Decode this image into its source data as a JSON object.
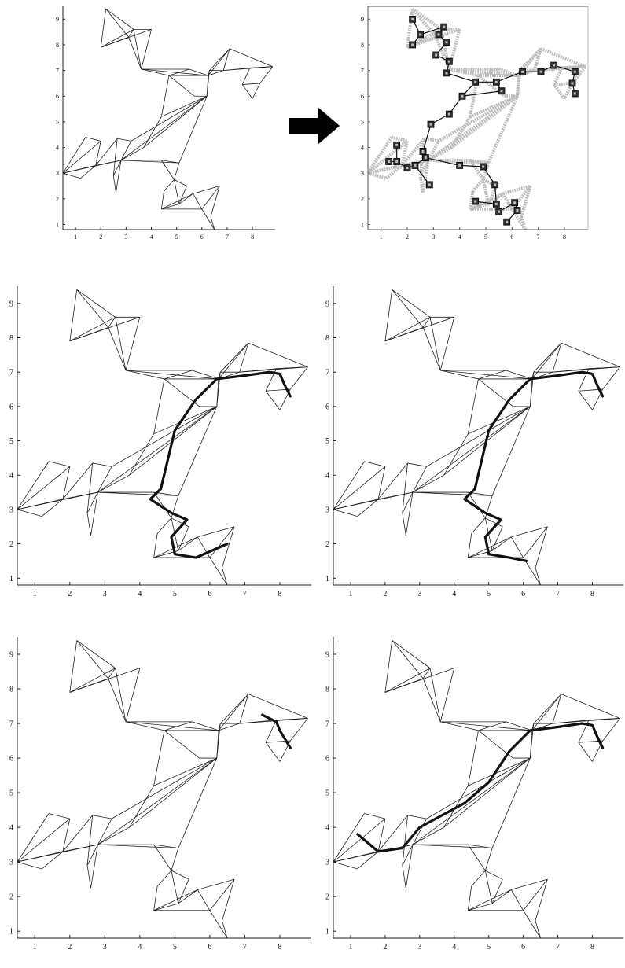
{
  "figure": {
    "panels": [
      {
        "id": "panel-top-left",
        "kind": "mesh",
        "path": null
      },
      {
        "id": "panel-top-right",
        "kind": "graph",
        "path": null
      },
      {
        "id": "panel-mid-left",
        "kind": "mesh_path",
        "path": [
          [
            8.3,
            6.3
          ],
          [
            8.15,
            6.6
          ],
          [
            8.0,
            6.95
          ],
          [
            7.7,
            7.0
          ],
          [
            7.0,
            6.9
          ],
          [
            6.2,
            6.8
          ],
          [
            5.6,
            6.2
          ],
          [
            5.0,
            5.3
          ],
          [
            4.6,
            3.6
          ],
          [
            4.3,
            3.3
          ],
          [
            4.9,
            2.9
          ],
          [
            5.35,
            2.7
          ],
          [
            4.9,
            2.2
          ],
          [
            5.0,
            1.7
          ],
          [
            5.6,
            1.6
          ],
          [
            6.5,
            2.0
          ]
        ]
      },
      {
        "id": "panel-mid-right",
        "kind": "mesh_path",
        "path": [
          [
            8.3,
            6.3
          ],
          [
            8.15,
            6.6
          ],
          [
            8.0,
            6.95
          ],
          [
            7.7,
            7.0
          ],
          [
            7.0,
            6.9
          ],
          [
            6.2,
            6.8
          ],
          [
            5.6,
            6.2
          ],
          [
            5.0,
            5.3
          ],
          [
            4.6,
            3.6
          ],
          [
            4.3,
            3.3
          ],
          [
            4.9,
            2.9
          ],
          [
            5.35,
            2.7
          ],
          [
            4.9,
            2.2
          ],
          [
            5.0,
            1.7
          ],
          [
            5.6,
            1.6
          ],
          [
            6.1,
            1.5
          ]
        ]
      },
      {
        "id": "panel-bot-left",
        "kind": "mesh_path",
        "path": [
          [
            8.3,
            6.3
          ],
          [
            8.0,
            6.8
          ],
          [
            7.9,
            7.05
          ],
          [
            7.5,
            7.25
          ]
        ]
      },
      {
        "id": "panel-bot-right",
        "kind": "mesh_path",
        "path": [
          [
            8.3,
            6.3
          ],
          [
            8.15,
            6.6
          ],
          [
            8.0,
            6.95
          ],
          [
            7.7,
            7.0
          ],
          [
            7.0,
            6.9
          ],
          [
            6.2,
            6.8
          ],
          [
            5.6,
            6.2
          ],
          [
            5.0,
            5.3
          ],
          [
            4.3,
            4.7
          ],
          [
            3.0,
            4.0
          ],
          [
            2.5,
            3.4
          ],
          [
            1.8,
            3.3
          ],
          [
            1.2,
            3.8
          ]
        ]
      }
    ],
    "axis": {
      "x_ticks": [
        1,
        2,
        3,
        4,
        5,
        6,
        7,
        8
      ],
      "y_ticks": [
        1,
        2,
        3,
        4,
        5,
        6,
        7,
        8,
        9
      ],
      "x_range": [
        0.5,
        8.9
      ],
      "y_range": [
        0.8,
        9.5
      ]
    },
    "mesh": {
      "nodes": [
        [
          2.2,
          9.4
        ],
        [
          3.3,
          8.6
        ],
        [
          4.0,
          8.6
        ],
        [
          2.0,
          7.9
        ],
        [
          3.6,
          7.05
        ],
        [
          3.1,
          8.3
        ],
        [
          6.25,
          6.8
        ],
        [
          5.5,
          7.05
        ],
        [
          7.1,
          7.85
        ],
        [
          6.3,
          7.0
        ],
        [
          6.85,
          7.0
        ],
        [
          8.8,
          7.15
        ],
        [
          7.9,
          7.1
        ],
        [
          7.6,
          6.45
        ],
        [
          8.3,
          6.5
        ],
        [
          8.0,
          5.9
        ],
        [
          4.7,
          6.8
        ],
        [
          6.2,
          6.0
        ],
        [
          5.7,
          6.0
        ],
        [
          4.4,
          5.2
        ],
        [
          1.4,
          4.4
        ],
        [
          2.0,
          4.25
        ],
        [
          2.65,
          4.35
        ],
        [
          3.2,
          4.25
        ],
        [
          0.5,
          3.0
        ],
        [
          1.8,
          3.3
        ],
        [
          2.5,
          2.9
        ],
        [
          1.2,
          2.8
        ],
        [
          2.8,
          3.5
        ],
        [
          2.6,
          2.25
        ],
        [
          3.7,
          4.0
        ],
        [
          4.4,
          3.5
        ],
        [
          5.1,
          3.4
        ],
        [
          4.9,
          2.75
        ],
        [
          5.4,
          2.5
        ],
        [
          5.1,
          1.8
        ],
        [
          4.4,
          1.6
        ],
        [
          5.65,
          2.2
        ],
        [
          6.7,
          2.5
        ],
        [
          6.0,
          1.6
        ],
        [
          6.35,
          1.3
        ],
        [
          6.5,
          0.8
        ],
        [
          4.5,
          2.3
        ]
      ],
      "edges": [
        [
          0,
          1
        ],
        [
          0,
          3
        ],
        [
          1,
          2
        ],
        [
          1,
          3
        ],
        [
          2,
          3
        ],
        [
          1,
          5
        ],
        [
          3,
          5
        ],
        [
          0,
          5
        ],
        [
          5,
          4
        ],
        [
          1,
          4
        ],
        [
          2,
          4
        ],
        [
          4,
          16
        ],
        [
          4,
          6
        ],
        [
          16,
          7
        ],
        [
          4,
          7
        ],
        [
          7,
          6
        ],
        [
          6,
          8
        ],
        [
          8,
          9
        ],
        [
          9,
          10
        ],
        [
          10,
          6
        ],
        [
          6,
          9
        ],
        [
          8,
          11
        ],
        [
          11,
          10
        ],
        [
          11,
          12
        ],
        [
          12,
          13
        ],
        [
          13,
          14
        ],
        [
          14,
          11
        ],
        [
          14,
          15
        ],
        [
          15,
          13
        ],
        [
          10,
          12
        ],
        [
          12,
          11
        ],
        [
          8,
          10
        ],
        [
          16,
          6
        ],
        [
          16,
          18
        ],
        [
          6,
          17
        ],
        [
          9,
          17
        ],
        [
          17,
          18
        ],
        [
          16,
          19
        ],
        [
          19,
          17
        ],
        [
          17,
          32
        ],
        [
          19,
          30
        ],
        [
          17,
          30
        ],
        [
          17,
          28
        ],
        [
          17,
          23
        ],
        [
          30,
          28
        ],
        [
          28,
          23
        ],
        [
          23,
          22
        ],
        [
          22,
          26
        ],
        [
          26,
          28
        ],
        [
          20,
          21
        ],
        [
          21,
          24
        ],
        [
          20,
          24
        ],
        [
          21,
          25
        ],
        [
          24,
          25
        ],
        [
          24,
          27
        ],
        [
          27,
          25
        ],
        [
          25,
          22
        ],
        [
          24,
          28
        ],
        [
          25,
          28
        ],
        [
          28,
          29
        ],
        [
          29,
          26
        ],
        [
          28,
          31
        ],
        [
          28,
          32
        ],
        [
          31,
          32
        ],
        [
          31,
          33
        ],
        [
          32,
          33
        ],
        [
          33,
          34
        ],
        [
          34,
          35
        ],
        [
          33,
          35
        ],
        [
          35,
          36
        ],
        [
          36,
          42
        ],
        [
          42,
          33
        ],
        [
          35,
          37
        ],
        [
          37,
          39
        ],
        [
          36,
          39
        ],
        [
          39,
          38
        ],
        [
          38,
          40
        ],
        [
          40,
          41
        ],
        [
          41,
          39
        ],
        [
          37,
          38
        ],
        [
          36,
          37
        ]
      ]
    },
    "graph": {
      "nodes": [
        [
          2.2,
          9.0
        ],
        [
          2.5,
          8.4
        ],
        [
          2.2,
          8.0
        ],
        [
          3.4,
          8.7
        ],
        [
          3.2,
          8.4
        ],
        [
          3.5,
          8.1
        ],
        [
          3.1,
          7.6
        ],
        [
          3.6,
          7.35
        ],
        [
          3.5,
          6.9
        ],
        [
          4.6,
          6.55
        ],
        [
          5.4,
          6.55
        ],
        [
          5.6,
          6.2
        ],
        [
          6.4,
          6.95
        ],
        [
          7.1,
          6.95
        ],
        [
          7.6,
          7.2
        ],
        [
          8.4,
          6.95
        ],
        [
          8.3,
          6.5
        ],
        [
          8.4,
          6.1
        ],
        [
          4.1,
          6.0
        ],
        [
          3.6,
          5.3
        ],
        [
          2.9,
          4.9
        ],
        [
          1.6,
          4.1
        ],
        [
          1.6,
          3.45
        ],
        [
          2.0,
          3.2
        ],
        [
          1.3,
          3.45
        ],
        [
          2.3,
          3.3
        ],
        [
          2.6,
          3.85
        ],
        [
          2.7,
          3.6
        ],
        [
          2.85,
          2.55
        ],
        [
          4.0,
          3.3
        ],
        [
          4.9,
          3.25
        ],
        [
          5.35,
          2.55
        ],
        [
          4.6,
          1.9
        ],
        [
          5.4,
          1.8
        ],
        [
          5.5,
          1.5
        ],
        [
          6.1,
          1.85
        ],
        [
          6.2,
          1.55
        ],
        [
          5.8,
          1.1
        ]
      ],
      "edges": [
        [
          0,
          1
        ],
        [
          1,
          2
        ],
        [
          1,
          3
        ],
        [
          3,
          4
        ],
        [
          4,
          5
        ],
        [
          5,
          6
        ],
        [
          6,
          7
        ],
        [
          7,
          8
        ],
        [
          8,
          9
        ],
        [
          9,
          10
        ],
        [
          10,
          11
        ],
        [
          10,
          12
        ],
        [
          12,
          13
        ],
        [
          13,
          14
        ],
        [
          14,
          15
        ],
        [
          15,
          16
        ],
        [
          16,
          17
        ],
        [
          9,
          18
        ],
        [
          18,
          19
        ],
        [
          19,
          20
        ],
        [
          20,
          26
        ],
        [
          26,
          27
        ],
        [
          27,
          25
        ],
        [
          25,
          23
        ],
        [
          23,
          22
        ],
        [
          22,
          24
        ],
        [
          22,
          21
        ],
        [
          25,
          28
        ],
        [
          27,
          29
        ],
        [
          29,
          30
        ],
        [
          30,
          31
        ],
        [
          31,
          33
        ],
        [
          33,
          32
        ],
        [
          33,
          34
        ],
        [
          34,
          35
        ],
        [
          35,
          36
        ],
        [
          36,
          37
        ],
        [
          11,
          18
        ]
      ]
    }
  }
}
